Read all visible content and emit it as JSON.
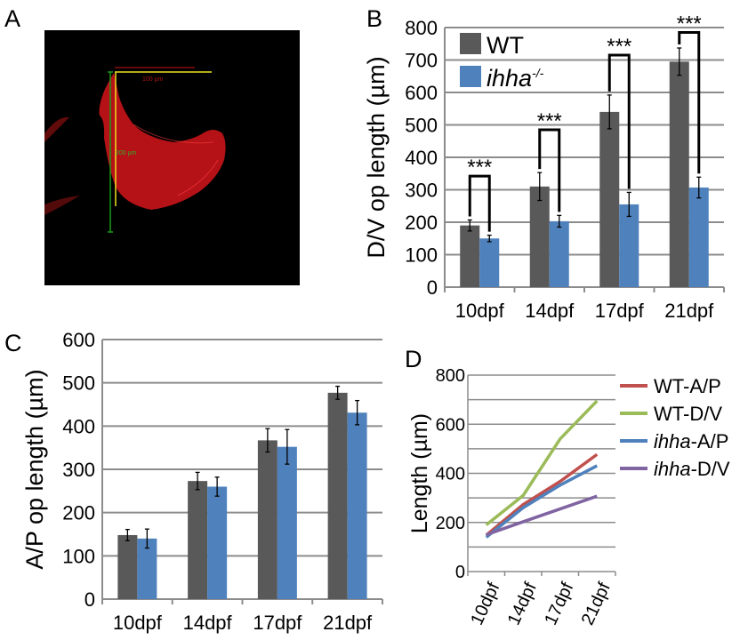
{
  "panel_labels": {
    "a": "A",
    "b": "B",
    "c": "C",
    "d": "D"
  },
  "colors": {
    "wt": "#595959",
    "ihha": "#4f81bd",
    "grid": "#8c8c8c",
    "wt_ap": "#c0504d",
    "wt_dv": "#9bbb59",
    "ihha_ap": "#4f81bd",
    "ihha_dv": "#8064a2"
  },
  "micrograph": {
    "scale_bar_horizontal": "100 µm",
    "scale_bar_vertical": "200 µm",
    "background": "#000000",
    "tissue_color": "#d81a1a"
  },
  "chart_data": [
    {
      "id": "B",
      "type": "bar",
      "categories": [
        "10dpf",
        "14dpf",
        "17dpf",
        "21dpf"
      ],
      "ylabel": "D/V op length (µm)",
      "ylim": [
        0,
        800
      ],
      "yticks": [
        0,
        100,
        200,
        300,
        400,
        500,
        600,
        700,
        800
      ],
      "grid": true,
      "legend_position": "top-left",
      "legend": [
        {
          "name": "WT",
          "sup": ""
        },
        {
          "name": "ihha",
          "sup": "-/-"
        }
      ],
      "series": [
        {
          "name": "WT",
          "values": [
            190,
            310,
            540,
            695
          ],
          "errors": [
            17,
            43,
            52,
            42
          ]
        },
        {
          "name": "ihha-/-",
          "values": [
            150,
            203,
            255,
            307
          ],
          "errors": [
            10,
            18,
            37,
            32
          ]
        }
      ],
      "annotations": [
        "***",
        "***",
        "***",
        "***"
      ]
    },
    {
      "id": "C",
      "type": "bar",
      "categories": [
        "10dpf",
        "14dpf",
        "17dpf",
        "21dpf"
      ],
      "ylabel": "A/P op length (µm)",
      "ylim": [
        0,
        600
      ],
      "yticks": [
        0,
        100,
        200,
        300,
        400,
        500,
        600
      ],
      "grid": true,
      "series": [
        {
          "values": [
            148,
            273,
            367,
            477
          ],
          "errors": [
            13,
            20,
            27,
            15
          ]
        },
        {
          "values": [
            140,
            260,
            352,
            431
          ],
          "errors": [
            22,
            22,
            40,
            28
          ]
        }
      ]
    },
    {
      "id": "D",
      "type": "line",
      "categories": [
        "10dpf",
        "14dpf",
        "17dpf",
        "21dpf"
      ],
      "ylabel": "Length (µm)",
      "ylim": [
        0,
        800
      ],
      "yticks": [
        0,
        200,
        400,
        600,
        800
      ],
      "grid": true,
      "legend_position": "right",
      "series": [
        {
          "name": "WT-A/P",
          "prefix": "WT",
          "suffix": "-A/P",
          "italic": false,
          "values": [
            148,
            273,
            367,
            477
          ]
        },
        {
          "name": "WT-D/V",
          "prefix": "WT",
          "suffix": "-D/V",
          "italic": false,
          "values": [
            190,
            310,
            540,
            695
          ]
        },
        {
          "name": "ihha-A/P",
          "prefix": "ihha",
          "suffix": "-A/P",
          "italic": true,
          "values": [
            140,
            260,
            352,
            431
          ]
        },
        {
          "name": "ihha-D/V",
          "prefix": "ihha",
          "suffix": "-D/V",
          "italic": true,
          "values": [
            150,
            203,
            255,
            307
          ]
        }
      ]
    }
  ]
}
